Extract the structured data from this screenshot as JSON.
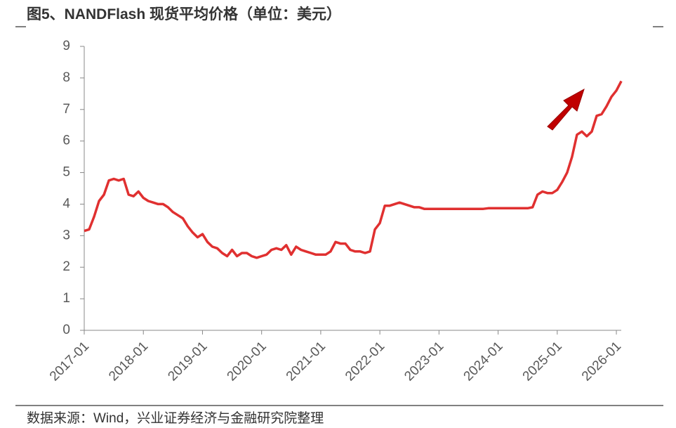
{
  "chart_data": {
    "type": "line",
    "title": "图5、NANDFlash 现货平均价格（单位：美元）",
    "source": "数据来源：Wind，兴业证券经济与金融研究院整理",
    "x": [
      "2017-01",
      "2017-02",
      "2017-03",
      "2017-04",
      "2017-05",
      "2017-06",
      "2017-07",
      "2017-08",
      "2017-09",
      "2017-10",
      "2017-11",
      "2017-12",
      "2018-01",
      "2018-02",
      "2018-03",
      "2018-04",
      "2018-05",
      "2018-06",
      "2018-07",
      "2018-08",
      "2018-09",
      "2018-10",
      "2018-11",
      "2018-12",
      "2019-01",
      "2019-02",
      "2019-03",
      "2019-04",
      "2019-05",
      "2019-06",
      "2019-07",
      "2019-08",
      "2019-09",
      "2019-10",
      "2019-11",
      "2019-12",
      "2020-01",
      "2020-02",
      "2020-03",
      "2020-04",
      "2020-05",
      "2020-06",
      "2020-07",
      "2020-08",
      "2020-09",
      "2020-10",
      "2020-11",
      "2020-12",
      "2021-01",
      "2021-02",
      "2021-03",
      "2021-04",
      "2021-05",
      "2021-06",
      "2021-07",
      "2021-08",
      "2021-09",
      "2021-10",
      "2021-11",
      "2021-12",
      "2022-01",
      "2022-02",
      "2022-03",
      "2022-04",
      "2022-05",
      "2022-06",
      "2022-07",
      "2022-08",
      "2022-09",
      "2022-10",
      "2022-11",
      "2022-12",
      "2023-01",
      "2023-02",
      "2023-03",
      "2023-04",
      "2023-05",
      "2023-06",
      "2023-07",
      "2023-08",
      "2023-09",
      "2023-10",
      "2023-11",
      "2023-12",
      "2024-01",
      "2024-02",
      "2024-03",
      "2024-04",
      "2024-05",
      "2024-06",
      "2024-07",
      "2024-08",
      "2024-09",
      "2024-10",
      "2024-11",
      "2024-12",
      "2025-01",
      "2025-02",
      "2025-03",
      "2025-04",
      "2025-05",
      "2025-06",
      "2025-07",
      "2025-08",
      "2025-09",
      "2025-10",
      "2025-11",
      "2025-12",
      "2026-01",
      "2026-02"
    ],
    "series": [
      {
        "name": "NANDFlash 现货平均价格",
        "color": "#e03030",
        "values": [
          3.15,
          3.2,
          3.6,
          4.1,
          4.3,
          4.75,
          4.8,
          4.75,
          4.8,
          4.3,
          4.25,
          4.4,
          4.2,
          4.1,
          4.05,
          4.0,
          4.0,
          3.9,
          3.75,
          3.65,
          3.55,
          3.3,
          3.1,
          2.95,
          3.05,
          2.8,
          2.65,
          2.6,
          2.45,
          2.35,
          2.55,
          2.35,
          2.45,
          2.45,
          2.35,
          2.3,
          2.35,
          2.4,
          2.55,
          2.6,
          2.55,
          2.7,
          2.4,
          2.65,
          2.55,
          2.5,
          2.45,
          2.4,
          2.4,
          2.4,
          2.5,
          2.8,
          2.75,
          2.75,
          2.55,
          2.5,
          2.5,
          2.45,
          2.5,
          3.2,
          3.4,
          3.95,
          3.95,
          4.0,
          4.05,
          4.0,
          3.95,
          3.9,
          3.9,
          3.85,
          3.85,
          3.85,
          3.85,
          3.85,
          3.85,
          3.85,
          3.85,
          3.85,
          3.85,
          3.85,
          3.85,
          3.85,
          3.87,
          3.87,
          3.87,
          3.87,
          3.87,
          3.87,
          3.87,
          3.87,
          3.87,
          3.9,
          4.3,
          4.4,
          4.35,
          4.35,
          4.45,
          4.7,
          5.0,
          5.5,
          6.2,
          6.3,
          6.15,
          6.3,
          6.8,
          6.85,
          7.1,
          7.4,
          7.6,
          7.9
        ]
      }
    ],
    "xticks": [
      "2017-01",
      "2018-01",
      "2019-01",
      "2020-01",
      "2021-01",
      "2022-01",
      "2023-01",
      "2024-01",
      "2025-01",
      "2026-01"
    ],
    "ylim": [
      0,
      9
    ],
    "yticks": [
      0,
      1,
      2,
      3,
      4,
      5,
      6,
      7,
      8,
      9
    ]
  }
}
